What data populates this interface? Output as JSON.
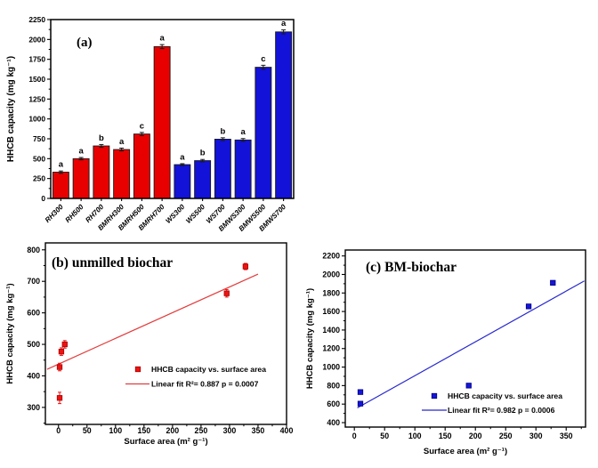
{
  "figure": {
    "background": "#ffffff"
  },
  "chart_data": [
    {
      "id": "a",
      "type": "bar",
      "panel_label": "(a)",
      "ylabel": "HHCB capacity (mg kg⁻¹)",
      "ylim": [
        0,
        2250
      ],
      "yticks": [
        0,
        250,
        500,
        750,
        1000,
        1250,
        1500,
        1750,
        2000,
        2250
      ],
      "ytick_minor_step": 125,
      "grid": false,
      "categories": [
        "RH300",
        "RH500",
        "RH700",
        "BMRH300",
        "BMRH500",
        "BMRH700",
        "WS300",
        "WS500",
        "WS700",
        "BMWS300",
        "BMWS500",
        "BMWS700"
      ],
      "values": [
        330,
        500,
        660,
        615,
        810,
        1910,
        425,
        475,
        745,
        735,
        1650,
        2095
      ],
      "errors": [
        15,
        15,
        18,
        18,
        20,
        25,
        12,
        15,
        18,
        18,
        25,
        25
      ],
      "sig_letters": [
        "a",
        "a",
        "b",
        "a",
        "c",
        "a",
        "a",
        "b",
        "b",
        "a",
        "c",
        "a"
      ],
      "bar_colors": [
        "#e80000",
        "#e80000",
        "#e80000",
        "#e80000",
        "#e80000",
        "#e80000",
        "#1212d8",
        "#1212d8",
        "#1212d8",
        "#1212d8",
        "#1212d8",
        "#1212d8"
      ],
      "bar_edge_color": "#1a1a1a",
      "error_bar_color": "#1a1a1a"
    },
    {
      "id": "b",
      "type": "scatter",
      "panel_label": "(b) unmilled biochar",
      "xlabel": "Surface area (m² g⁻¹)",
      "ylabel": "HHCB capacity (mg kg⁻¹)",
      "xlim": [
        -23,
        400
      ],
      "xticks": [
        0,
        50,
        100,
        150,
        200,
        250,
        300,
        350,
        400
      ],
      "xtick_minor_step": 25,
      "ylim": [
        246,
        822
      ],
      "yticks": [
        300,
        400,
        500,
        600,
        700,
        800
      ],
      "ytick_minor_step": 50,
      "grid": false,
      "points": [
        [
          2,
          330
        ],
        [
          2,
          428
        ],
        [
          5,
          477
        ],
        [
          11,
          500
        ],
        [
          295,
          662
        ],
        [
          328,
          747
        ]
      ],
      "yerr": [
        18,
        12,
        12,
        12,
        12,
        10
      ],
      "fit_line": [
        [
          -20,
          421
        ],
        [
          350,
          723
        ]
      ],
      "legend": [
        {
          "symbol": "square",
          "label": "HHCB capacity vs. surface area"
        },
        {
          "symbol": "line",
          "label": "Linear fit R²= 0.887 p = 0.0007"
        }
      ],
      "marker_color": "#ee1212",
      "marker_edge_color": "#a80000",
      "line_color": "#e23d3d"
    },
    {
      "id": "c",
      "type": "scatter",
      "panel_label": "(c) BM-biochar",
      "xlabel": "Surface area (m² g⁻¹)",
      "ylabel": "HHCB capacity (mg kg⁻¹)",
      "xlim": [
        -15,
        382
      ],
      "xticks": [
        0,
        50,
        100,
        150,
        200,
        250,
        300,
        350
      ],
      "xtick_minor_step": 25,
      "ylim": [
        352,
        2264
      ],
      "yticks": [
        400,
        600,
        800,
        1000,
        1200,
        1400,
        1600,
        1800,
        2000,
        2200
      ],
      "ytick_minor_step": 100,
      "grid": false,
      "points": [
        [
          10,
          730
        ],
        [
          10,
          605
        ],
        [
          189,
          800
        ],
        [
          288,
          1655
        ],
        [
          328,
          1910
        ]
      ],
      "yerr": [
        0,
        0,
        0,
        0,
        0
      ],
      "fit_line": [
        [
          5,
          560
        ],
        [
          380,
          1930
        ]
      ],
      "legend": [
        {
          "symbol": "square",
          "label": "HHCB capacity vs. surface area"
        },
        {
          "symbol": "line",
          "label": "Linear fit R²= 0.982 p = 0.0006"
        }
      ],
      "marker_color": "#1515d9",
      "marker_edge_color": "#000080",
      "line_color": "#2828cf"
    }
  ]
}
